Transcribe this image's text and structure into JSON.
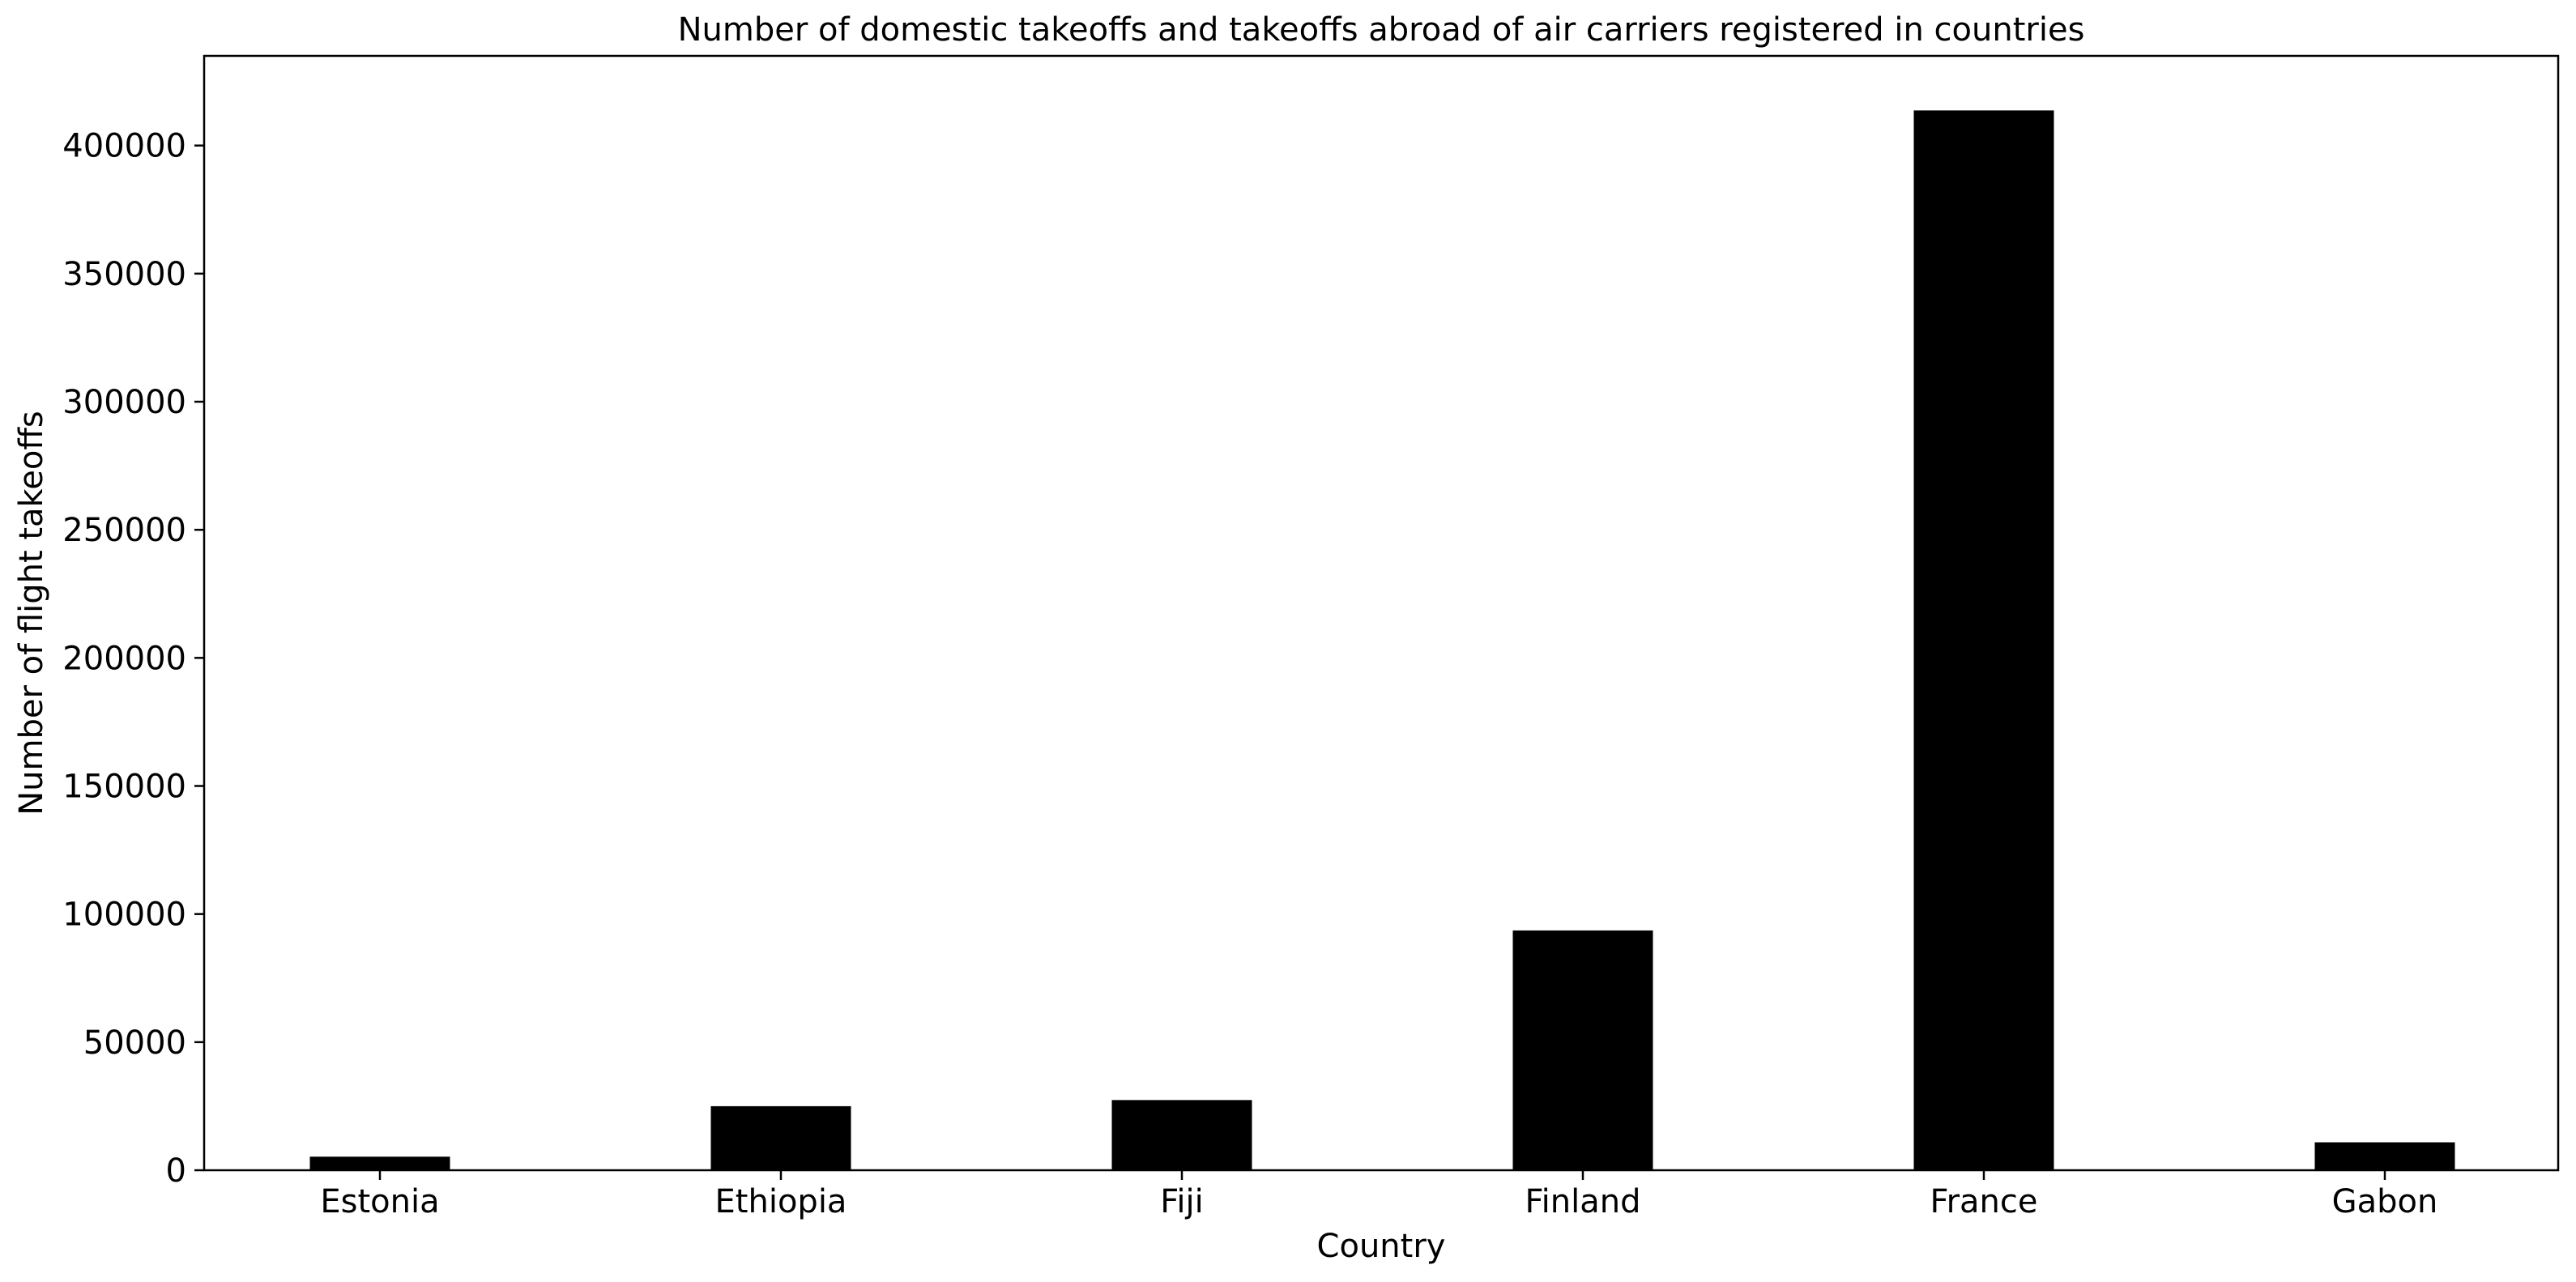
{
  "chart_data": {
    "type": "bar",
    "title": "Number of domestic takeoffs and takeoffs abroad of air carriers registered in countries",
    "xlabel": "Country",
    "ylabel": "Number of flight takeoffs",
    "categories": [
      "Estonia",
      "Ethiopia",
      "Fiji",
      "Finland",
      "France",
      "Gabon"
    ],
    "values": [
      5300,
      25000,
      27400,
      93600,
      413700,
      10900
    ],
    "ylim": [
      0,
      435000
    ],
    "yticks": [
      0,
      50000,
      100000,
      150000,
      200000,
      250000,
      300000,
      350000,
      400000
    ],
    "ytick_labels": [
      "0",
      "50000",
      "100000",
      "150000",
      "200000",
      "250000",
      "300000",
      "350000",
      "400000"
    ],
    "grid": false,
    "legend": "none",
    "bar_color": "#000000"
  }
}
